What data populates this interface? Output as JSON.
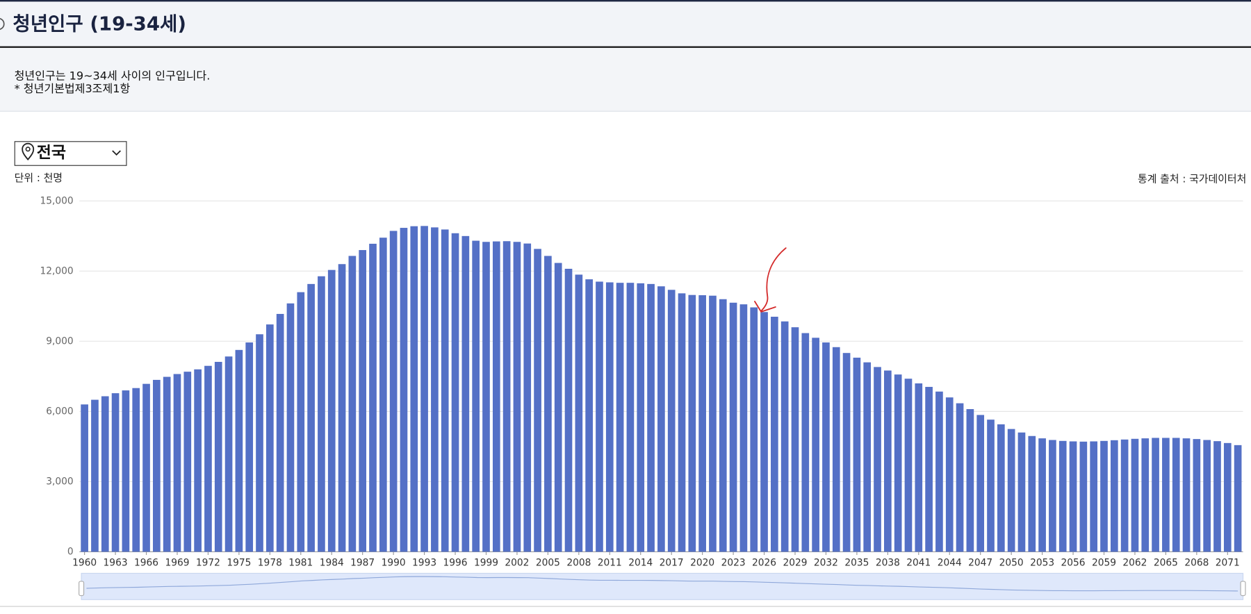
{
  "header": {
    "title": "청년인구 (19-34세)"
  },
  "description": {
    "lines": [
      "청년인구는 19~34세 사이의 인구입니다.",
      "* 청년기본법제3조제1항"
    ]
  },
  "region_select": {
    "label": "전국"
  },
  "unit": "단위 : 천명",
  "source": "통계 출처 : 국가데이터처",
  "chart_data": {
    "type": "bar",
    "color": "#5470c6",
    "grid": true,
    "ylim": [
      0,
      15000
    ],
    "yticks": [
      0,
      {
        "value": 3000,
        "label": "3,000"
      },
      {
        "value": 6000,
        "label": "6,000"
      },
      {
        "value": 9000,
        "label": "9,000"
      },
      {
        "value": 12000,
        "label": "12,000"
      },
      {
        "value": 15000,
        "label": "15,000"
      }
    ],
    "categories": [
      "1960",
      null,
      null,
      "1963",
      null,
      null,
      "1966",
      null,
      null,
      "1969",
      null,
      null,
      "1972",
      null,
      null,
      "1975",
      null,
      null,
      "1978",
      null,
      null,
      "1981",
      null,
      null,
      "1984",
      null,
      null,
      "1987",
      null,
      null,
      "1990",
      null,
      null,
      "1993",
      null,
      null,
      "1996",
      null,
      null,
      "1999",
      null,
      null,
      "2002",
      null,
      null,
      "2005",
      null,
      null,
      "2008",
      null,
      null,
      "2011",
      null,
      null,
      "2014",
      null,
      null,
      "2017",
      null,
      null,
      "2020",
      null,
      null,
      "2023",
      null,
      null,
      "2026",
      null,
      null,
      "2029",
      null,
      null,
      "2032",
      null,
      null,
      "2035",
      null,
      null,
      "2038",
      null,
      null,
      "2041",
      null,
      null,
      "2044",
      null,
      null,
      "2047",
      null,
      null,
      "2050",
      null,
      null,
      "2053",
      null,
      null,
      "2056",
      null,
      null,
      "2059",
      null,
      null,
      "2062",
      null,
      null,
      "2065",
      null,
      null,
      "2068",
      null,
      null,
      "2071",
      null
    ],
    "values": [
      6300,
      6500,
      6650,
      6780,
      6900,
      7000,
      7180,
      7350,
      7480,
      7600,
      7700,
      7800,
      7950,
      8120,
      8350,
      8630,
      8950,
      9300,
      9720,
      10170,
      10620,
      11100,
      11450,
      11780,
      12050,
      12300,
      12650,
      12900,
      13170,
      13430,
      13720,
      13850,
      13920,
      13930,
      13870,
      13780,
      13620,
      13500,
      13300,
      13250,
      13270,
      13280,
      13250,
      13180,
      12950,
      12650,
      12350,
      12100,
      11850,
      11650,
      11550,
      11520,
      11500,
      11500,
      11480,
      11450,
      11350,
      11200,
      11050,
      10980,
      10970,
      10950,
      10800,
      10650,
      10580,
      10450,
      10250,
      10050,
      9850,
      9600,
      9350,
      9150,
      8950,
      8750,
      8500,
      8300,
      8100,
      7900,
      7750,
      7580,
      7400,
      7200,
      7050,
      6850,
      6600,
      6350,
      6100,
      5850,
      5650,
      5450,
      5250,
      5100,
      4950,
      4850,
      4780,
      4740,
      4720,
      4710,
      4720,
      4740,
      4770,
      4800,
      4830,
      4850,
      4870,
      4870,
      4870,
      4850,
      4820,
      4780,
      4730,
      4650,
      4560
    ]
  }
}
